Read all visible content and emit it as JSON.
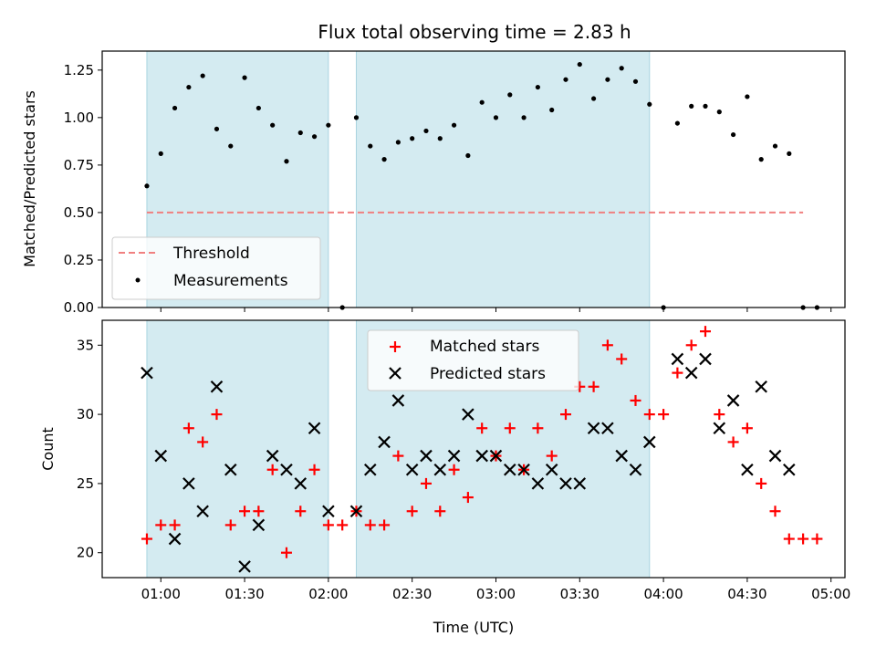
{
  "chart_data": [
    {
      "type": "scatter",
      "title": "Flux total observing time = 2.83 h",
      "xlabel": "",
      "ylabel": "Matched/Predicted stars",
      "ylim": [
        0,
        1.35
      ],
      "yticks": [
        0,
        0.25,
        0.5,
        0.75,
        1.0,
        1.25
      ],
      "ytick_labels": [
        "0.00",
        "0.25",
        "0.50",
        "0.75",
        "1.00",
        "1.25"
      ],
      "xlim": [
        "00:39",
        "05:05"
      ],
      "x_ticks": [
        "01:00",
        "01:30",
        "02:00",
        "02:30",
        "03:00",
        "03:30",
        "04:00",
        "04:30",
        "05:00"
      ],
      "shaded_intervals": [
        [
          "00:55",
          "02:00"
        ],
        [
          "02:10",
          "03:55"
        ]
      ],
      "threshold": {
        "name": "Threshold",
        "value": 0.5,
        "x_range": [
          "00:55",
          "04:50"
        ],
        "color": "#f08080"
      },
      "legend_position": "lower-left",
      "series": [
        {
          "name": "Measurements",
          "marker": "dot",
          "color": "#000000",
          "points": [
            [
              "00:55",
              0.64
            ],
            [
              "01:00",
              0.81
            ],
            [
              "01:05",
              1.05
            ],
            [
              "01:10",
              1.16
            ],
            [
              "01:15",
              1.22
            ],
            [
              "01:20",
              0.94
            ],
            [
              "01:25",
              0.85
            ],
            [
              "01:30",
              1.21
            ],
            [
              "01:35",
              1.05
            ],
            [
              "01:40",
              0.96
            ],
            [
              "01:45",
              0.77
            ],
            [
              "01:50",
              0.92
            ],
            [
              "01:55",
              0.9
            ],
            [
              "02:00",
              0.96
            ],
            [
              "02:05",
              0.0
            ],
            [
              "02:10",
              1.0
            ],
            [
              "02:15",
              0.85
            ],
            [
              "02:20",
              0.78
            ],
            [
              "02:25",
              0.87
            ],
            [
              "02:30",
              0.89
            ],
            [
              "02:35",
              0.93
            ],
            [
              "02:40",
              0.89
            ],
            [
              "02:45",
              0.96
            ],
            [
              "02:50",
              0.8
            ],
            [
              "02:55",
              1.08
            ],
            [
              "03:00",
              1.0
            ],
            [
              "03:05",
              1.12
            ],
            [
              "03:10",
              1.0
            ],
            [
              "03:15",
              1.16
            ],
            [
              "03:20",
              1.04
            ],
            [
              "03:25",
              1.2
            ],
            [
              "03:30",
              1.28
            ],
            [
              "03:35",
              1.1
            ],
            [
              "03:40",
              1.2
            ],
            [
              "03:45",
              1.26
            ],
            [
              "03:50",
              1.19
            ],
            [
              "03:55",
              1.07
            ],
            [
              "04:00",
              0.0
            ],
            [
              "04:05",
              0.97
            ],
            [
              "04:10",
              1.06
            ],
            [
              "04:15",
              1.06
            ],
            [
              "04:20",
              1.03
            ],
            [
              "04:25",
              0.91
            ],
            [
              "04:30",
              1.11
            ],
            [
              "04:35",
              0.78
            ],
            [
              "04:40",
              0.85
            ],
            [
              "04:45",
              0.81
            ],
            [
              "04:50",
              0.0
            ],
            [
              "04:55",
              0.0
            ]
          ]
        }
      ]
    },
    {
      "type": "scatter",
      "title": "",
      "xlabel": "Time (UTC)",
      "ylabel": "Count",
      "ylim": [
        18.2,
        36.8
      ],
      "yticks": [
        20,
        25,
        30,
        35
      ],
      "ytick_labels": [
        "20",
        "25",
        "30",
        "35"
      ],
      "xlim": [
        "00:39",
        "05:05"
      ],
      "x_ticks": [
        "01:00",
        "01:30",
        "02:00",
        "02:30",
        "03:00",
        "03:30",
        "04:00",
        "04:30",
        "05:00"
      ],
      "shaded_intervals": [
        [
          "00:55",
          "02:00"
        ],
        [
          "02:10",
          "03:55"
        ]
      ],
      "legend_position": "upper-center",
      "series": [
        {
          "name": "Matched stars",
          "marker": "plus",
          "color": "#ff0000",
          "points": [
            [
              "00:55",
              21
            ],
            [
              "01:00",
              22
            ],
            [
              "01:05",
              22
            ],
            [
              "01:10",
              29
            ],
            [
              "01:15",
              28
            ],
            [
              "01:20",
              30
            ],
            [
              "01:25",
              22
            ],
            [
              "01:30",
              23
            ],
            [
              "01:35",
              23
            ],
            [
              "01:40",
              26
            ],
            [
              "01:45",
              20
            ],
            [
              "01:50",
              23
            ],
            [
              "01:55",
              26
            ],
            [
              "02:00",
              22
            ],
            [
              "02:05",
              22
            ],
            [
              "02:10",
              23
            ],
            [
              "02:15",
              22
            ],
            [
              "02:20",
              22
            ],
            [
              "02:25",
              27
            ],
            [
              "02:30",
              23
            ],
            [
              "02:35",
              25
            ],
            [
              "02:40",
              23
            ],
            [
              "02:45",
              26
            ],
            [
              "02:50",
              24
            ],
            [
              "02:55",
              29
            ],
            [
              "03:00",
              27
            ],
            [
              "03:05",
              29
            ],
            [
              "03:10",
              26
            ],
            [
              "03:15",
              29
            ],
            [
              "03:20",
              27
            ],
            [
              "03:25",
              30
            ],
            [
              "03:30",
              32
            ],
            [
              "03:35",
              32
            ],
            [
              "03:40",
              35
            ],
            [
              "03:45",
              34
            ],
            [
              "03:50",
              31
            ],
            [
              "03:55",
              30
            ],
            [
              "04:00",
              30
            ],
            [
              "04:05",
              33
            ],
            [
              "04:10",
              35
            ],
            [
              "04:15",
              36
            ],
            [
              "04:20",
              30
            ],
            [
              "04:25",
              28
            ],
            [
              "04:30",
              29
            ],
            [
              "04:35",
              25
            ],
            [
              "04:40",
              23
            ],
            [
              "04:45",
              21
            ],
            [
              "04:50",
              21
            ],
            [
              "04:55",
              21
            ]
          ]
        },
        {
          "name": "Predicted stars",
          "marker": "x",
          "color": "#000000",
          "points": [
            [
              "00:55",
              33
            ],
            [
              "01:00",
              27
            ],
            [
              "01:05",
              21
            ],
            [
              "01:10",
              25
            ],
            [
              "01:15",
              23
            ],
            [
              "01:20",
              32
            ],
            [
              "01:25",
              26
            ],
            [
              "01:30",
              19
            ],
            [
              "01:35",
              22
            ],
            [
              "01:40",
              27
            ],
            [
              "01:45",
              26
            ],
            [
              "01:50",
              25
            ],
            [
              "01:55",
              29
            ],
            [
              "02:00",
              23
            ],
            [
              "02:10",
              23
            ],
            [
              "02:15",
              26
            ],
            [
              "02:20",
              28
            ],
            [
              "02:25",
              31
            ],
            [
              "02:30",
              26
            ],
            [
              "02:35",
              27
            ],
            [
              "02:40",
              26
            ],
            [
              "02:45",
              27
            ],
            [
              "02:50",
              30
            ],
            [
              "02:55",
              27
            ],
            [
              "03:00",
              27
            ],
            [
              "03:05",
              26
            ],
            [
              "03:10",
              26
            ],
            [
              "03:15",
              25
            ],
            [
              "03:20",
              26
            ],
            [
              "03:25",
              25
            ],
            [
              "03:30",
              25
            ],
            [
              "03:35",
              29
            ],
            [
              "03:40",
              29
            ],
            [
              "03:45",
              27
            ],
            [
              "03:50",
              26
            ],
            [
              "03:55",
              28
            ],
            [
              "04:05",
              34
            ],
            [
              "04:10",
              33
            ],
            [
              "04:15",
              34
            ],
            [
              "04:20",
              29
            ],
            [
              "04:25",
              31
            ],
            [
              "04:30",
              26
            ],
            [
              "04:35",
              32
            ],
            [
              "04:40",
              27
            ],
            [
              "04:45",
              26
            ]
          ]
        }
      ]
    }
  ],
  "colors": {
    "shade": "#d4ebf1",
    "shade_edge": "#a9d3e0"
  }
}
